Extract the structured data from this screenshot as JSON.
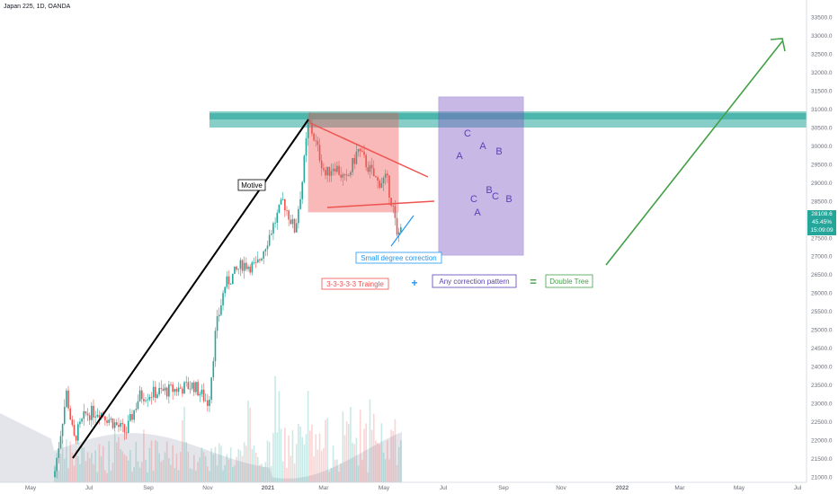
{
  "header": {
    "title": "Japan 225, 1D, OANDA"
  },
  "price_tag": {
    "price": "28108.6",
    "change": "45.45%",
    "countdown": "15:09:09"
  },
  "colors": {
    "up": "#26a69a",
    "down": "#ef5350",
    "resistance": "#26a69a",
    "triangle": "#ef5350",
    "correction": "#7e57c2",
    "motive": "#000000",
    "small_correction": "#2196f3",
    "projection": "#43a047"
  },
  "chart_data": {
    "type": "candlestick",
    "title": "Japan 225, 1D, OANDA",
    "y_ticks": [
      "33500.0",
      "33000.0",
      "32500.0",
      "32000.0",
      "31500.0",
      "31000.0",
      "30500.0",
      "30000.0",
      "29500.0",
      "29000.0",
      "28500.0",
      "28000.0",
      "27500.0",
      "27000.0",
      "26500.0",
      "26000.0",
      "25500.0",
      "25000.0",
      "24500.0",
      "24000.0",
      "23500.0",
      "23000.0",
      "22500.0",
      "22000.0",
      "21500.0",
      "21000.0"
    ],
    "x_ticks": [
      "May",
      "Jul",
      "Sep",
      "Nov",
      "2021",
      "Mar",
      "May",
      "Jul",
      "Sep",
      "Nov",
      "2022",
      "Mar",
      "May",
      "Jul"
    ],
    "ylim": [
      21000,
      33700
    ],
    "resistance_zone": [
      30500,
      30950
    ],
    "key_points": [
      {
        "date": "2020-06-10",
        "value": 21500
      },
      {
        "date": "2021-02-16",
        "value": 30700
      },
      {
        "date": "2021-05-13",
        "value": 27400
      },
      {
        "date": "2021-06-07",
        "value": 28108.6
      }
    ],
    "annotations": {
      "motive": "Motive",
      "small_degree": "Small degree correction",
      "triangle": "3-3-3-3-3 Traingle",
      "plus": "+",
      "any_correction": "Any correction pattern",
      "equals": "=",
      "double_tree": "Double Tree",
      "wave_labels_top": [
        "A",
        "C",
        "A",
        "B"
      ],
      "wave_labels_bottom": [
        "C",
        "A",
        "B",
        "C",
        "B"
      ]
    }
  }
}
